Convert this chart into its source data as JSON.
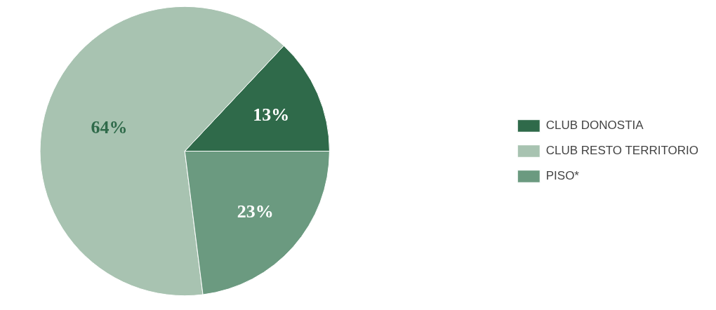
{
  "chart_data": {
    "type": "pie",
    "categories": [
      "CLUB DONOSTIA",
      "CLUB RESTO TERRITORIO",
      "PISO*"
    ],
    "values": [
      13,
      64,
      23
    ],
    "colors": [
      "#2f6a4a",
      "#a8c3b1",
      "#6b9a80"
    ],
    "value_labels": [
      "13%",
      "64%",
      "23%"
    ],
    "legend": "right"
  }
}
